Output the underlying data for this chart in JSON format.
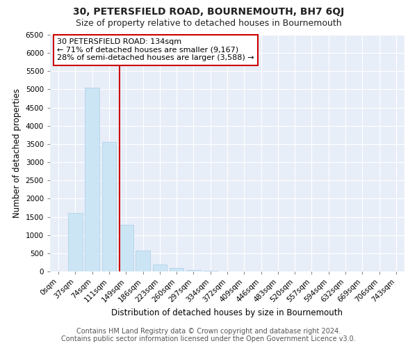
{
  "title": "30, PETERSFIELD ROAD, BOURNEMOUTH, BH7 6QJ",
  "subtitle": "Size of property relative to detached houses in Bournemouth",
  "xlabel": "Distribution of detached houses by size in Bournemouth",
  "ylabel": "Number of detached properties",
  "categories": [
    "0sqm",
    "37sqm",
    "74sqm",
    "111sqm",
    "149sqm",
    "186sqm",
    "223sqm",
    "260sqm",
    "297sqm",
    "334sqm",
    "372sqm",
    "409sqm",
    "446sqm",
    "483sqm",
    "520sqm",
    "557sqm",
    "594sqm",
    "632sqm",
    "669sqm",
    "706sqm",
    "743sqm"
  ],
  "values": [
    0,
    1600,
    5050,
    3560,
    1280,
    580,
    200,
    90,
    40,
    15,
    5,
    3,
    2,
    1,
    0,
    0,
    0,
    0,
    0,
    0,
    0
  ],
  "bar_color": "#cce5f5",
  "bar_edge_color": "#aacce8",
  "vline_color": "#cc0000",
  "vline_pos": 3.62,
  "annotation_text": "30 PETERSFIELD ROAD: 134sqm\n← 71% of detached houses are smaller (9,167)\n28% of semi-detached houses are larger (3,588) →",
  "annotation_box_color": "#ffffff",
  "annotation_box_edge": "#cc0000",
  "ylim": [
    0,
    6500
  ],
  "yticks": [
    0,
    500,
    1000,
    1500,
    2000,
    2500,
    3000,
    3500,
    4000,
    4500,
    5000,
    5500,
    6000,
    6500
  ],
  "footer_line1": "Contains HM Land Registry data © Crown copyright and database right 2024.",
  "footer_line2": "Contains public sector information licensed under the Open Government Licence v3.0.",
  "background_color": "#ffffff",
  "plot_bg_color": "#e8eef8",
  "title_fontsize": 10,
  "subtitle_fontsize": 9,
  "axis_label_fontsize": 8.5,
  "tick_fontsize": 7.5,
  "annotation_fontsize": 8,
  "footer_fontsize": 7
}
